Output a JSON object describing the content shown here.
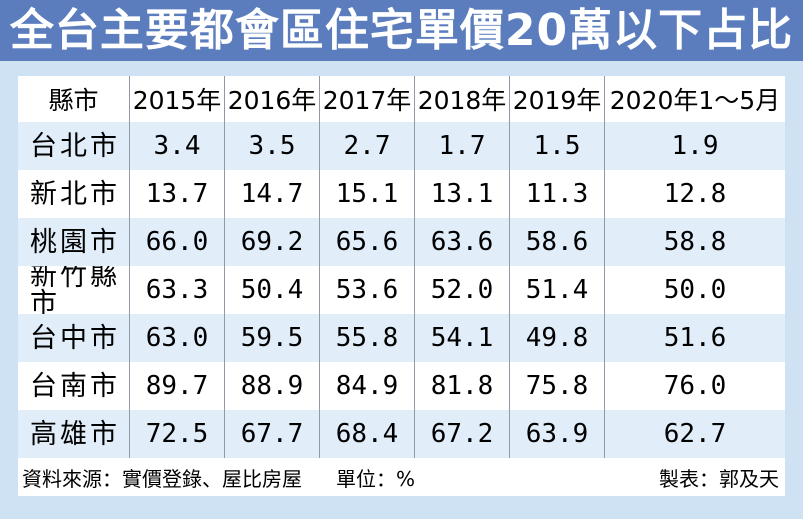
{
  "title": "全台主要都會區住宅單價20萬以下占比",
  "table": {
    "columns": [
      "縣市",
      "2015年",
      "2016年",
      "2017年",
      "2018年",
      "2019年",
      "2020年1～5月"
    ]
  },
  "chart_data": {
    "type": "table",
    "title": "全台主要都會區住宅單價20萬以下占比",
    "categories": [
      "2015年",
      "2016年",
      "2017年",
      "2018年",
      "2019年",
      "2020年1～5月"
    ],
    "series": [
      {
        "name": "台北市",
        "values": [
          3.4,
          3.5,
          2.7,
          1.7,
          1.5,
          1.9
        ]
      },
      {
        "name": "新北市",
        "values": [
          13.7,
          14.7,
          15.1,
          13.1,
          11.3,
          12.8
        ]
      },
      {
        "name": "桃園市",
        "values": [
          66.0,
          69.2,
          65.6,
          63.6,
          58.6,
          58.8
        ]
      },
      {
        "name": "新竹縣市",
        "values": [
          63.3,
          50.4,
          53.6,
          52.0,
          51.4,
          50.0
        ]
      },
      {
        "name": "台中市",
        "values": [
          63.0,
          59.5,
          55.8,
          54.1,
          49.8,
          51.6
        ]
      },
      {
        "name": "台南市",
        "values": [
          89.7,
          88.9,
          84.9,
          81.8,
          75.8,
          76.0
        ]
      },
      {
        "name": "高雄市",
        "values": [
          72.5,
          67.7,
          68.4,
          67.2,
          63.9,
          62.7
        ]
      }
    ],
    "unit": "%",
    "value_format": "one_decimal"
  },
  "footer": {
    "source": "資料來源：實價登錄、屋比房屋",
    "unit": "單位：%",
    "credit": "製表：郭及天"
  },
  "colors": {
    "title_background": "#5b7dbe",
    "title_text": "#ffffff",
    "page_background": "#cfe2f4",
    "row_alternate_blue": "#e1edf9",
    "row_white": "#ffffff",
    "column_divider": "#8f9aa6",
    "text": "#000000"
  }
}
